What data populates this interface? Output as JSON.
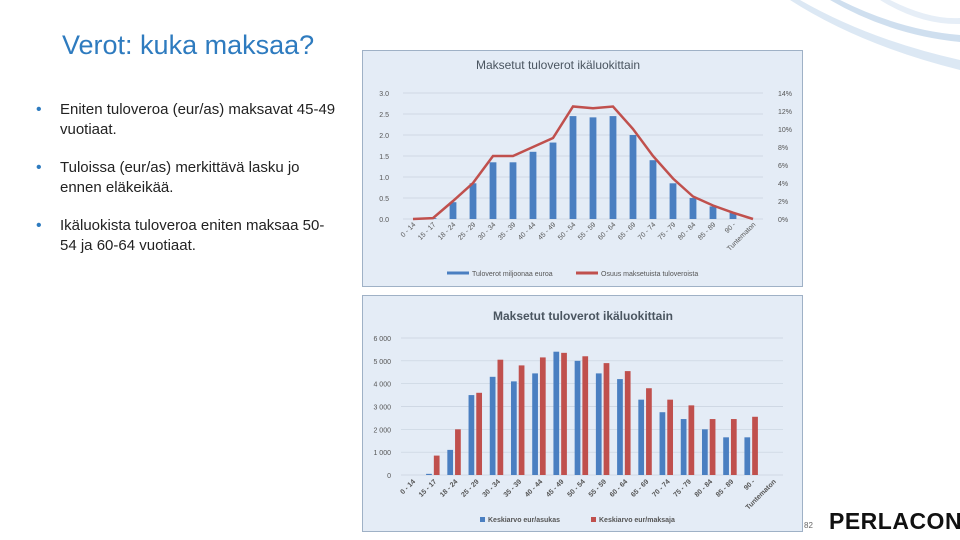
{
  "slide": {
    "title": "Verot: kuka maksaa?",
    "bullets": [
      "Eniten tuloveroa (eur/as) maksavat 45-49 vuotiaat.",
      "Tuloissa (eur/as) merkittävä lasku jo ennen eläkeikää.",
      "Ikäluokista tuloveroa eniten maksaa 50-54 ja 60-64 vuotiaat."
    ],
    "page_number": "82",
    "logo_text": "PERLACON",
    "accent_color": "#2e7bbf"
  },
  "chart_data": [
    {
      "type": "bar",
      "title": "Maksetut tuloverot ikäluokittain",
      "categories": [
        "0 - 14",
        "15 - 17",
        "18 - 24",
        "25 - 29",
        "30 - 34",
        "35 - 39",
        "40 - 44",
        "45 - 49",
        "50 - 54",
        "55 - 59",
        "60 - 64",
        "65 - 69",
        "70 - 74",
        "75 - 79",
        "80 - 84",
        "85 - 89",
        "90 -",
        "Tuntematon"
      ],
      "yticks_left": [
        "3.0",
        "2.5",
        "2.0",
        "1.5",
        "1.0",
        "0.5",
        "0.0"
      ],
      "yticks_right": [
        "14%",
        "12%",
        "10%",
        "8%",
        "6%",
        "4%",
        "2%",
        "0%"
      ],
      "ylim_left": [
        0,
        3
      ],
      "ylim_right": [
        0,
        14
      ],
      "series": [
        {
          "name": "Tuloverot miljoonaa euroa",
          "kind": "bar",
          "axis": "left",
          "color": "#4a7fc1",
          "values": [
            0.0,
            0.02,
            0.4,
            0.85,
            1.35,
            1.35,
            1.6,
            1.82,
            2.45,
            2.42,
            2.45,
            2.0,
            1.4,
            0.85,
            0.5,
            0.3,
            0.15,
            0.0
          ]
        },
        {
          "name": "Osuus maksetuista tuloveroista",
          "kind": "line",
          "axis": "right",
          "color": "#c0504d",
          "values": [
            0.0,
            0.1,
            2.0,
            4.0,
            7.0,
            7.0,
            8.0,
            9.0,
            12.5,
            12.3,
            12.5,
            10.0,
            7.0,
            4.5,
            2.5,
            1.5,
            0.7,
            0.0
          ]
        }
      ]
    },
    {
      "type": "bar",
      "title": "Maksetut tuloverot ikäluokittain",
      "categories": [
        "0 - 14",
        "15 - 17",
        "18 - 24",
        "25 - 29",
        "30 - 34",
        "35 - 39",
        "40 - 44",
        "45 - 49",
        "50 - 54",
        "55 - 59",
        "60 - 64",
        "65 - 69",
        "70 - 74",
        "75 - 79",
        "80 - 84",
        "85 - 89",
        "90 -",
        "Tuntematon"
      ],
      "yticks": [
        "6 000",
        "5 000",
        "4 000",
        "3 000",
        "2 000",
        "1 000",
        "0"
      ],
      "ylim": [
        0,
        6000
      ],
      "series": [
        {
          "name": "Keskiarvo eur/asukas",
          "color": "#4a7fc1",
          "values": [
            0,
            50,
            1100,
            3500,
            4300,
            4100,
            4450,
            5400,
            5000,
            4450,
            4200,
            3300,
            2750,
            2450,
            2000,
            1650,
            1650,
            0
          ]
        },
        {
          "name": "Keskiarvo eur/maksaja",
          "color": "#c0504d",
          "values": [
            0,
            850,
            2000,
            3600,
            5050,
            4800,
            5150,
            5350,
            5200,
            4900,
            4550,
            3800,
            3300,
            3050,
            2450,
            2450,
            2550,
            0
          ]
        }
      ]
    }
  ]
}
